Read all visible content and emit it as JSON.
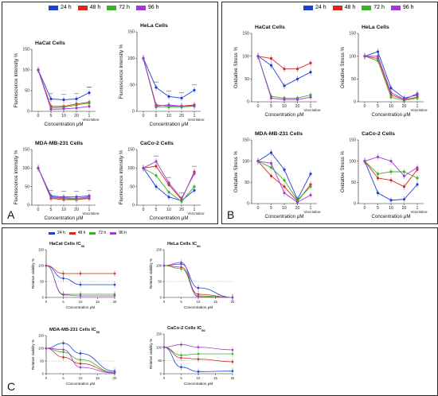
{
  "legend_series": [
    {
      "name": "24 h",
      "color": "#1f3fd6"
    },
    {
      "name": "48 h",
      "color": "#d42a1f"
    },
    {
      "name": "72 h",
      "color": "#3fae2e"
    },
    {
      "name": "96 h",
      "color": "#a23bd4"
    }
  ],
  "panels": {
    "a": {
      "label": "A"
    },
    "b": {
      "label": "B"
    },
    "c": {
      "label": "C"
    }
  },
  "chart_data": [
    {
      "type": "line",
      "panel": "A",
      "title": "HaCat Cells",
      "xlabel": "Concentration μM",
      "ylabel": "Fluorescence intensity %",
      "categories": [
        "0",
        "5",
        "10",
        "20",
        "1"
      ],
      "extra_label": "Vincristine",
      "ylim": [
        0,
        150
      ],
      "yticks": [
        0,
        50,
        100,
        150
      ],
      "series": [
        {
          "name": "24 h",
          "values": [
            100,
            30,
            28,
            30,
            45
          ]
        },
        {
          "name": "48 h",
          "values": [
            100,
            12,
            12,
            18,
            22
          ]
        },
        {
          "name": "72 h",
          "values": [
            100,
            8,
            10,
            15,
            20
          ]
        },
        {
          "name": "96 h",
          "values": [
            100,
            5,
            6,
            8,
            12
          ]
        }
      ],
      "annotations": [
        "***",
        "****",
        "****",
        "****",
        "****"
      ]
    },
    {
      "type": "line",
      "panel": "A",
      "title": "HeLa Cells",
      "xlabel": "Concentration μM",
      "ylabel": "Fluorescence intensity %",
      "categories": [
        "0",
        "5",
        "10",
        "20",
        "1"
      ],
      "extra_label": "Vincristine",
      "ylim": [
        0,
        150
      ],
      "yticks": [
        0,
        50,
        100,
        150
      ],
      "series": [
        {
          "name": "24 h",
          "values": [
            100,
            45,
            28,
            25,
            40
          ]
        },
        {
          "name": "48 h",
          "values": [
            100,
            12,
            10,
            10,
            12
          ]
        },
        {
          "name": "72 h",
          "values": [
            100,
            8,
            8,
            8,
            10
          ]
        },
        {
          "name": "96 h",
          "values": [
            100,
            10,
            12,
            10,
            10
          ]
        }
      ],
      "annotations": [
        "****",
        "****",
        "****",
        "****"
      ]
    },
    {
      "type": "line",
      "panel": "A",
      "title": "MDA-MB-231 Cells",
      "xlabel": "Concentration μM",
      "ylabel": "Fluorescence intensity %",
      "categories": [
        "0",
        "5",
        "10",
        "20",
        "1"
      ],
      "extra_label": "Vincristine",
      "ylim": [
        0,
        150
      ],
      "yticks": [
        0,
        50,
        100,
        150
      ],
      "series": [
        {
          "name": "24 h",
          "values": [
            100,
            25,
            22,
            22,
            25
          ]
        },
        {
          "name": "48 h",
          "values": [
            100,
            18,
            15,
            15,
            18
          ]
        },
        {
          "name": "72 h",
          "values": [
            100,
            20,
            18,
            16,
            20
          ]
        },
        {
          "name": "96 h",
          "values": [
            100,
            22,
            20,
            18,
            22
          ]
        }
      ],
      "annotations": [
        "****",
        "****",
        "****",
        "****"
      ]
    },
    {
      "type": "line",
      "panel": "A",
      "title": "CaCo-2 Cells",
      "xlabel": "Concentration μM",
      "ylabel": "Fluorescence intensity %",
      "categories": [
        "0",
        "5",
        "10",
        "20",
        "1"
      ],
      "extra_label": "Vincristine",
      "ylim": [
        0,
        150
      ],
      "yticks": [
        0,
        50,
        100,
        150
      ],
      "series": [
        {
          "name": "24 h",
          "values": [
            100,
            50,
            22,
            12,
            40
          ]
        },
        {
          "name": "48 h",
          "values": [
            100,
            105,
            55,
            15,
            90
          ]
        },
        {
          "name": "72 h",
          "values": [
            100,
            80,
            35,
            10,
            50
          ]
        },
        {
          "name": "96 h",
          "values": [
            100,
            118,
            60,
            18,
            85
          ]
        }
      ],
      "annotations": [
        "****",
        "****",
        "****",
        "****"
      ]
    },
    {
      "type": "line",
      "panel": "B",
      "title": "HaCat Cells",
      "xlabel": "Concentration μM",
      "ylabel": "Oxidative Stress %",
      "categories": [
        "0",
        "5",
        "10",
        "20",
        "1"
      ],
      "extra_label": "Vincristine",
      "ylim": [
        0,
        150
      ],
      "yticks": [
        0,
        50,
        100,
        150
      ],
      "series": [
        {
          "name": "24 h",
          "values": [
            100,
            80,
            35,
            50,
            65
          ]
        },
        {
          "name": "48 h",
          "values": [
            100,
            95,
            72,
            72,
            85
          ]
        },
        {
          "name": "72 h",
          "values": [
            100,
            12,
            8,
            8,
            15
          ]
        },
        {
          "name": "96 h",
          "values": [
            100,
            8,
            5,
            5,
            10
          ]
        }
      ]
    },
    {
      "type": "line",
      "panel": "B",
      "title": "HeLa Cells",
      "xlabel": "Concentration μM",
      "ylabel": "Oxidative Stress %",
      "categories": [
        "0",
        "5",
        "10",
        "20",
        "1"
      ],
      "extra_label": "Vincristine",
      "ylim": [
        0,
        150
      ],
      "yticks": [
        0,
        50,
        100,
        150
      ],
      "series": [
        {
          "name": "24 h",
          "values": [
            100,
            110,
            30,
            8,
            15
          ]
        },
        {
          "name": "48 h",
          "values": [
            100,
            95,
            15,
            5,
            10
          ]
        },
        {
          "name": "72 h",
          "values": [
            100,
            90,
            10,
            3,
            8
          ]
        },
        {
          "name": "96 h",
          "values": [
            100,
            100,
            20,
            5,
            18
          ]
        }
      ]
    },
    {
      "type": "line",
      "panel": "B",
      "title": "MDA-MB-231 Cells",
      "xlabel": "Concentration μM",
      "ylabel": "Oxidative Stress %",
      "categories": [
        "0",
        "5",
        "10",
        "20",
        "1"
      ],
      "extra_label": "Vincristine",
      "ylim": [
        0,
        150
      ],
      "yticks": [
        0,
        50,
        100,
        150
      ],
      "series": [
        {
          "name": "24 h",
          "values": [
            100,
            120,
            80,
            10,
            70
          ]
        },
        {
          "name": "48 h",
          "values": [
            100,
            65,
            40,
            5,
            45
          ]
        },
        {
          "name": "72 h",
          "values": [
            100,
            85,
            55,
            8,
            40
          ]
        },
        {
          "name": "96 h",
          "values": [
            100,
            95,
            25,
            3,
            20
          ]
        }
      ]
    },
    {
      "type": "line",
      "panel": "B",
      "title": "CaCo-2 Cells",
      "xlabel": "Concentration μM",
      "ylabel": "Oxidative Stress %",
      "categories": [
        "0",
        "5",
        "10",
        "20",
        "1"
      ],
      "extra_label": "Vincristine",
      "ylim": [
        0,
        150
      ],
      "yticks": [
        0,
        50,
        100,
        150
      ],
      "series": [
        {
          "name": "24 h",
          "values": [
            100,
            25,
            8,
            10,
            45
          ]
        },
        {
          "name": "48 h",
          "values": [
            100,
            60,
            55,
            40,
            80
          ]
        },
        {
          "name": "72 h",
          "values": [
            100,
            70,
            75,
            75,
            60
          ]
        },
        {
          "name": "96 h",
          "values": [
            100,
            110,
            100,
            65,
            85
          ]
        }
      ]
    },
    {
      "type": "line",
      "panel": "C",
      "title": "HaCat Cells IC",
      "title_sub": "50",
      "xlabel": "Concentration μM",
      "ylabel": "Relative viability %",
      "xticks": [
        0,
        5,
        10,
        15,
        20
      ],
      "xlim": [
        0,
        20
      ],
      "ylim": [
        0,
        150
      ],
      "yticks": [
        0,
        50,
        100,
        150
      ],
      "threshold": 50,
      "series": [
        {
          "name": "24 h",
          "x": [
            0,
            5,
            10,
            20
          ],
          "values": [
            100,
            60,
            40,
            40
          ]
        },
        {
          "name": "48 h",
          "x": [
            0,
            5,
            10,
            20
          ],
          "values": [
            100,
            75,
            75,
            75
          ]
        },
        {
          "name": "72 h",
          "x": [
            0,
            5,
            10,
            20
          ],
          "values": [
            100,
            10,
            10,
            10
          ]
        },
        {
          "name": "96 h",
          "x": [
            0,
            5,
            10,
            20
          ],
          "values": [
            100,
            8,
            5,
            5
          ]
        }
      ]
    },
    {
      "type": "line",
      "panel": "C",
      "title": "HeLa Cells IC",
      "title_sub": "50",
      "xlabel": "Concentration μM",
      "ylabel": "Relative viability %",
      "xticks": [
        0,
        5,
        10,
        15,
        20
      ],
      "xlim": [
        0,
        20
      ],
      "ylim": [
        0,
        150
      ],
      "yticks": [
        0,
        50,
        100,
        150
      ],
      "threshold": 50,
      "series": [
        {
          "name": "24 h",
          "x": [
            0,
            5,
            10,
            20
          ],
          "values": [
            100,
            105,
            30,
            0
          ]
        },
        {
          "name": "48 h",
          "x": [
            0,
            5,
            10,
            20
          ],
          "values": [
            100,
            95,
            10,
            0
          ]
        },
        {
          "name": "72 h",
          "x": [
            0,
            5,
            10,
            20
          ],
          "values": [
            100,
            90,
            5,
            0
          ]
        },
        {
          "name": "96 h",
          "x": [
            0,
            5,
            10,
            20
          ],
          "values": [
            100,
            110,
            2,
            0
          ]
        }
      ]
    },
    {
      "type": "line",
      "panel": "C",
      "title": "MDA-MB-231 Cells IC",
      "title_sub": "50",
      "xlabel": "Concentration μM",
      "ylabel": "Relative viability %",
      "xticks": [
        0,
        5,
        10,
        15,
        20
      ],
      "xlim": [
        0,
        20
      ],
      "ylim": [
        0,
        150
      ],
      "yticks": [
        0,
        50,
        100,
        150
      ],
      "threshold": 50,
      "series": [
        {
          "name": "24 h",
          "x": [
            0,
            5,
            10,
            20
          ],
          "values": [
            100,
            120,
            80,
            10
          ]
        },
        {
          "name": "48 h",
          "x": [
            0,
            5,
            10,
            20
          ],
          "values": [
            100,
            65,
            40,
            5
          ]
        },
        {
          "name": "72 h",
          "x": [
            0,
            5,
            10,
            20
          ],
          "values": [
            100,
            85,
            55,
            5
          ]
        },
        {
          "name": "96 h",
          "x": [
            0,
            5,
            10,
            20
          ],
          "values": [
            100,
            95,
            25,
            3
          ]
        }
      ]
    },
    {
      "type": "line",
      "panel": "C",
      "title": "CaCo-2 Cells IC",
      "title_sub": "50",
      "xlabel": "Concentration μM",
      "ylabel": "Relative viability %",
      "xticks": [
        0,
        5,
        10,
        15,
        20
      ],
      "xlim": [
        0,
        20
      ],
      "ylim": [
        0,
        150
      ],
      "yticks": [
        0,
        50,
        100,
        150
      ],
      "threshold": 50,
      "series": [
        {
          "name": "24 h",
          "x": [
            0,
            5,
            10,
            20
          ],
          "values": [
            100,
            25,
            8,
            10
          ]
        },
        {
          "name": "48 h",
          "x": [
            0,
            5,
            10,
            20
          ],
          "values": [
            100,
            60,
            55,
            45
          ]
        },
        {
          "name": "72 h",
          "x": [
            0,
            5,
            10,
            20
          ],
          "values": [
            100,
            70,
            75,
            75
          ]
        },
        {
          "name": "96 h",
          "x": [
            0,
            5,
            10,
            20
          ],
          "values": [
            100,
            110,
            100,
            90
          ]
        }
      ]
    }
  ]
}
